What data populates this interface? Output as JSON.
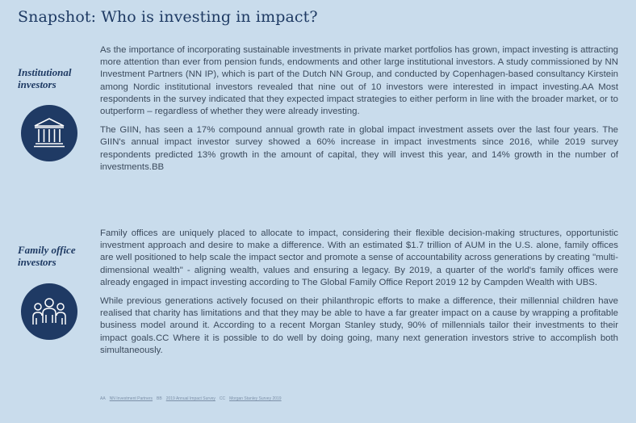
{
  "title": "Snapshot: Who is investing in impact?",
  "sections": [
    {
      "label": "Institutional investors",
      "icon": "institution-building-icon",
      "paragraphs": [
        "As the importance of incorporating sustainable investments in private market portfolios has grown, impact investing is attracting more attention than ever from pension funds, endowments and other large institutional investors. A study commissioned by NN Investment Partners (NN IP), which is part of the Dutch NN Group, and conducted by Copenhagen-based consultancy Kirstein among Nordic institutional investors revealed that nine out of 10 investors were interested in impact investing.AA Most respondents in the survey indicated that they expected impact strategies to either perform in line with the broader market, or to outperform – regardless of whether they were already investing.",
        "The GIIN, has seen a 17% compound annual growth rate in global impact investment assets over the last four years. The GIIN's annual impact investor survey showed a 60% increase in impact investments since 2016, while 2019 survey respondents predicted 13% growth in the amount of capital, they will invest this year, and 14% growth in the number of investments.BB"
      ]
    },
    {
      "label": "Family office investors",
      "icon": "family-group-icon",
      "paragraphs": [
        "Family offices are uniquely placed to allocate to impact, considering their flexible decision-making structures, opportunistic investment approach and desire to make a difference. With an estimated $1.7 trillion of AUM in the U.S. alone, family offices are well positioned to help scale the impact sector and promote a sense of accountability across generations by creating \"multi-dimensional wealth\" - aligning wealth, values and ensuring a legacy. By 2019, a quarter of the world's family offices were already engaged in impact investing according to The Global Family Office Report 2019 12 by Campden Wealth with UBS.",
        "While previous generations actively focused on their philanthropic efforts to make a difference, their millennial children have realised that charity has limitations and that they may be able to have a far greater impact on a cause by wrapping a profitable business model around it. According to a recent Morgan Stanley study, 90% of millennials tailor their investments to their impact goals.CC Where it is possible to do well by doing going, many next generation investors strive to accomplish both simultaneously."
      ]
    }
  ],
  "footnotes": [
    {
      "marker": "AA",
      "text": "NN Investment Partners"
    },
    {
      "marker": "BB",
      "text": "2019 Annual Impact Survey"
    },
    {
      "marker": "CC",
      "text": "Morgan Stanley Survey 2019"
    }
  ],
  "colors": {
    "background": "#c9dcec",
    "navy": "#1f3a64",
    "body_text": "#3b4a5c"
  }
}
